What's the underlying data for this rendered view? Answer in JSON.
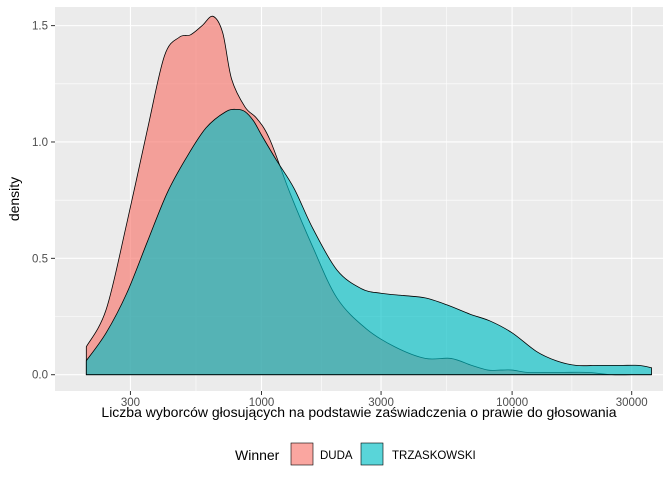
{
  "chart_data": {
    "type": "area",
    "xlabel": "Liczba wyborców głosujących na podstawie zaświadczenia o prawie do głosowania",
    "ylabel": "density",
    "x_scale": "log10",
    "xlim": [
      150,
      40000
    ],
    "ylim": [
      -0.07,
      1.58
    ],
    "x_ticks": [
      {
        "value": 300,
        "label": "300"
      },
      {
        "value": 1000,
        "label": "1000"
      },
      {
        "value": 3000,
        "label": "3000"
      },
      {
        "value": 10000,
        "label": "10000"
      },
      {
        "value": 30000,
        "label": "30000"
      }
    ],
    "y_ticks": [
      {
        "value": 0.0,
        "label": "0.0"
      },
      {
        "value": 0.5,
        "label": "0.5"
      },
      {
        "value": 1.0,
        "label": "1.0"
      },
      {
        "value": 1.5,
        "label": "1.5"
      }
    ],
    "grid": true,
    "legend": {
      "title": "Winner",
      "position": "bottom"
    },
    "series": [
      {
        "name": "DUDA",
        "color": "#F8766D",
        "x": [
          200,
          240,
          290,
          350,
          410,
          470,
          520,
          580,
          640,
          700,
          760,
          860,
          960,
          1080,
          1300,
          1600,
          2000,
          2600,
          3400,
          4500,
          5700,
          6900,
          8000,
          9000,
          10000,
          11500,
          13500,
          16000,
          20000,
          25000,
          30000,
          36000
        ],
        "y": [
          0.12,
          0.28,
          0.65,
          1.05,
          1.37,
          1.45,
          1.46,
          1.5,
          1.54,
          1.47,
          1.27,
          1.15,
          1.1,
          1.01,
          0.78,
          0.55,
          0.33,
          0.2,
          0.12,
          0.07,
          0.07,
          0.04,
          0.02,
          0.02,
          0.02,
          0.01,
          0.01,
          0.01,
          0.01,
          0.0,
          0.0,
          0.0
        ]
      },
      {
        "name": "TRZASKOWSKI",
        "color": "#00BFC4",
        "x": [
          200,
          240,
          290,
          350,
          420,
          500,
          600,
          720,
          800,
          860,
          930,
          1000,
          1150,
          1350,
          1600,
          2000,
          2500,
          3000,
          3700,
          4500,
          5500,
          6800,
          8200,
          10000,
          12500,
          15000,
          18000,
          22000,
          27000,
          32000,
          36000
        ],
        "y": [
          0.06,
          0.18,
          0.35,
          0.57,
          0.78,
          0.93,
          1.06,
          1.13,
          1.14,
          1.13,
          1.09,
          1.03,
          0.92,
          0.8,
          0.63,
          0.45,
          0.37,
          0.35,
          0.34,
          0.33,
          0.3,
          0.26,
          0.23,
          0.18,
          0.1,
          0.06,
          0.04,
          0.04,
          0.04,
          0.04,
          0.03
        ]
      }
    ]
  }
}
